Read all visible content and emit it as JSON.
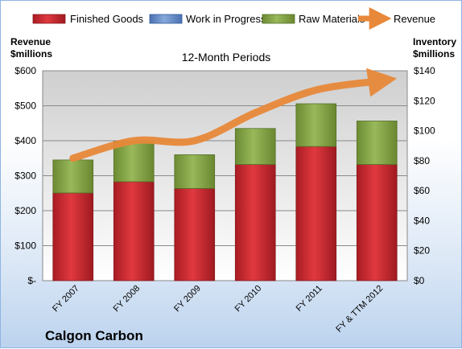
{
  "chart_data": {
    "type": "bar",
    "stacked": true,
    "subtitle": "12-Month Periods",
    "company": "Calgon Carbon",
    "left_axis": {
      "title_line1": "Revenue",
      "title_line2": "$millions",
      "min": 0,
      "max": 600,
      "step": 100,
      "tick_labels": [
        "$-",
        "$100",
        "$200",
        "$300",
        "$400",
        "$500",
        "$600"
      ]
    },
    "right_axis": {
      "title_line1": "Inventory",
      "title_line2": "$millions",
      "min": 0,
      "max": 140,
      "step": 20,
      "tick_labels": [
        "$0",
        "$20",
        "$40",
        "$60",
        "$80",
        "$100",
        "$120",
        "$140"
      ]
    },
    "categories": [
      "FY 2007",
      "FY 2008",
      "FY 2009",
      "FY 2010",
      "FY 2011",
      "FY & TTM 2012"
    ],
    "series": [
      {
        "name": "Finished Goods",
        "axis": "right",
        "color": "#c0242a",
        "values": [
          58.5,
          66,
          61.5,
          77.5,
          89.5,
          77.5
        ]
      },
      {
        "name": "Work in Progress",
        "axis": "right",
        "color": "#5b84c4",
        "values": [
          0,
          0,
          0,
          0,
          0,
          0
        ]
      },
      {
        "name": "Raw Materials",
        "axis": "right",
        "color": "#7f9f3f",
        "values": [
          22,
          27,
          22.5,
          24,
          28.5,
          29
        ]
      },
      {
        "name": "Revenue",
        "axis": "left",
        "type": "line",
        "color": "#e8893a",
        "values": [
          350,
          400,
          400,
          480,
          545,
          570
        ]
      }
    ],
    "grid": true,
    "legend_position": "top"
  }
}
